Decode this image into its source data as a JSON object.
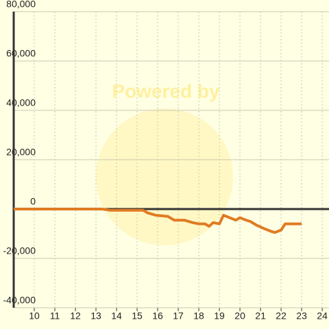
{
  "chart_data": {
    "type": "line",
    "watermark": "Powered by",
    "x": [
      9,
      13.3,
      13.7,
      15.3,
      15.5,
      15.9,
      16.5,
      16.8,
      17.3,
      17.7,
      18.0,
      18.3,
      18.5,
      18.7,
      19.0,
      19.2,
      19.5,
      19.8,
      20.0,
      20.3,
      20.5,
      20.8,
      21.2,
      21.5,
      21.7,
      22.0,
      22.2,
      22.5,
      23.0
    ],
    "series": [
      {
        "color": "#e07b22",
        "values": [
          0,
          0,
          -500,
          -500,
          -1500,
          -2500,
          -3000,
          -4500,
          -4500,
          -5500,
          -6000,
          -6000,
          -7000,
          -5500,
          -6000,
          -2500,
          -3500,
          -4500,
          -3500,
          -4500,
          -5000,
          -6500,
          -8000,
          -9000,
          -9500,
          -8500,
          -6000,
          -6000,
          -6000
        ]
      }
    ],
    "xlim": [
      9,
      24.33
    ],
    "xticks": [
      10,
      11,
      12,
      13,
      14,
      15,
      16,
      17,
      18,
      19,
      20,
      21,
      22,
      23,
      24
    ],
    "ylim": [
      -40000,
      80000
    ],
    "yticks": [
      {
        "value": -40000,
        "label": "-40,000"
      },
      {
        "value": -20000,
        "label": "-20,000"
      },
      0,
      {
        "value": 20000,
        "label": "20,000"
      },
      {
        "value": 40000,
        "label": "40,000"
      },
      {
        "value": 60000,
        "label": "60,000"
      },
      {
        "value": 80000,
        "label": "80,000"
      }
    ],
    "grid": true
  }
}
